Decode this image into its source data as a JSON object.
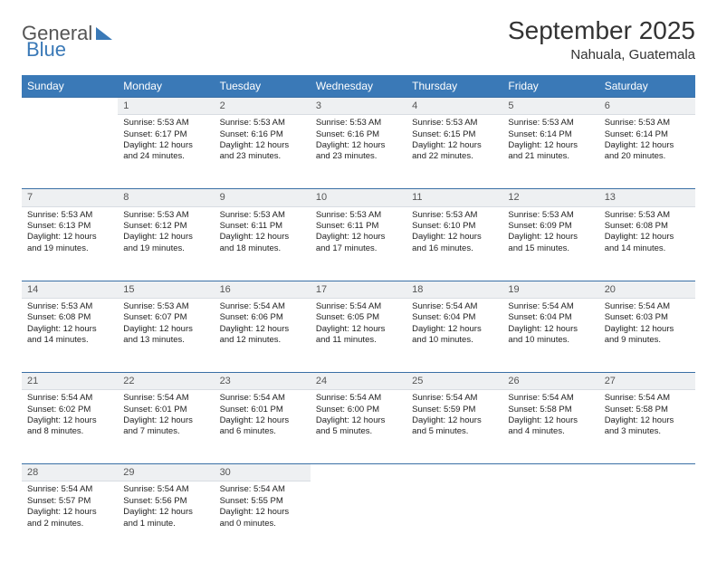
{
  "brand": {
    "part1": "General",
    "part2": "Blue"
  },
  "title": "September 2025",
  "location": "Nahuala, Guatemala",
  "colors": {
    "header_bg": "#3a79b7",
    "header_text": "#ffffff",
    "daynum_bg": "#eef0f2",
    "row_border": "#3a6fa5",
    "page_bg": "#ffffff",
    "body_text": "#222222",
    "title_text": "#333333"
  },
  "day_headers": [
    "Sunday",
    "Monday",
    "Tuesday",
    "Wednesday",
    "Thursday",
    "Friday",
    "Saturday"
  ],
  "weeks": [
    {
      "nums": [
        "",
        "1",
        "2",
        "3",
        "4",
        "5",
        "6"
      ],
      "cells": [
        null,
        {
          "sunrise": "Sunrise: 5:53 AM",
          "sunset": "Sunset: 6:17 PM",
          "daylight": "Daylight: 12 hours and 24 minutes."
        },
        {
          "sunrise": "Sunrise: 5:53 AM",
          "sunset": "Sunset: 6:16 PM",
          "daylight": "Daylight: 12 hours and 23 minutes."
        },
        {
          "sunrise": "Sunrise: 5:53 AM",
          "sunset": "Sunset: 6:16 PM",
          "daylight": "Daylight: 12 hours and 23 minutes."
        },
        {
          "sunrise": "Sunrise: 5:53 AM",
          "sunset": "Sunset: 6:15 PM",
          "daylight": "Daylight: 12 hours and 22 minutes."
        },
        {
          "sunrise": "Sunrise: 5:53 AM",
          "sunset": "Sunset: 6:14 PM",
          "daylight": "Daylight: 12 hours and 21 minutes."
        },
        {
          "sunrise": "Sunrise: 5:53 AM",
          "sunset": "Sunset: 6:14 PM",
          "daylight": "Daylight: 12 hours and 20 minutes."
        }
      ]
    },
    {
      "nums": [
        "7",
        "8",
        "9",
        "10",
        "11",
        "12",
        "13"
      ],
      "cells": [
        {
          "sunrise": "Sunrise: 5:53 AM",
          "sunset": "Sunset: 6:13 PM",
          "daylight": "Daylight: 12 hours and 19 minutes."
        },
        {
          "sunrise": "Sunrise: 5:53 AM",
          "sunset": "Sunset: 6:12 PM",
          "daylight": "Daylight: 12 hours and 19 minutes."
        },
        {
          "sunrise": "Sunrise: 5:53 AM",
          "sunset": "Sunset: 6:11 PM",
          "daylight": "Daylight: 12 hours and 18 minutes."
        },
        {
          "sunrise": "Sunrise: 5:53 AM",
          "sunset": "Sunset: 6:11 PM",
          "daylight": "Daylight: 12 hours and 17 minutes."
        },
        {
          "sunrise": "Sunrise: 5:53 AM",
          "sunset": "Sunset: 6:10 PM",
          "daylight": "Daylight: 12 hours and 16 minutes."
        },
        {
          "sunrise": "Sunrise: 5:53 AM",
          "sunset": "Sunset: 6:09 PM",
          "daylight": "Daylight: 12 hours and 15 minutes."
        },
        {
          "sunrise": "Sunrise: 5:53 AM",
          "sunset": "Sunset: 6:08 PM",
          "daylight": "Daylight: 12 hours and 14 minutes."
        }
      ]
    },
    {
      "nums": [
        "14",
        "15",
        "16",
        "17",
        "18",
        "19",
        "20"
      ],
      "cells": [
        {
          "sunrise": "Sunrise: 5:53 AM",
          "sunset": "Sunset: 6:08 PM",
          "daylight": "Daylight: 12 hours and 14 minutes."
        },
        {
          "sunrise": "Sunrise: 5:53 AM",
          "sunset": "Sunset: 6:07 PM",
          "daylight": "Daylight: 12 hours and 13 minutes."
        },
        {
          "sunrise": "Sunrise: 5:54 AM",
          "sunset": "Sunset: 6:06 PM",
          "daylight": "Daylight: 12 hours and 12 minutes."
        },
        {
          "sunrise": "Sunrise: 5:54 AM",
          "sunset": "Sunset: 6:05 PM",
          "daylight": "Daylight: 12 hours and 11 minutes."
        },
        {
          "sunrise": "Sunrise: 5:54 AM",
          "sunset": "Sunset: 6:04 PM",
          "daylight": "Daylight: 12 hours and 10 minutes."
        },
        {
          "sunrise": "Sunrise: 5:54 AM",
          "sunset": "Sunset: 6:04 PM",
          "daylight": "Daylight: 12 hours and 10 minutes."
        },
        {
          "sunrise": "Sunrise: 5:54 AM",
          "sunset": "Sunset: 6:03 PM",
          "daylight": "Daylight: 12 hours and 9 minutes."
        }
      ]
    },
    {
      "nums": [
        "21",
        "22",
        "23",
        "24",
        "25",
        "26",
        "27"
      ],
      "cells": [
        {
          "sunrise": "Sunrise: 5:54 AM",
          "sunset": "Sunset: 6:02 PM",
          "daylight": "Daylight: 12 hours and 8 minutes."
        },
        {
          "sunrise": "Sunrise: 5:54 AM",
          "sunset": "Sunset: 6:01 PM",
          "daylight": "Daylight: 12 hours and 7 minutes."
        },
        {
          "sunrise": "Sunrise: 5:54 AM",
          "sunset": "Sunset: 6:01 PM",
          "daylight": "Daylight: 12 hours and 6 minutes."
        },
        {
          "sunrise": "Sunrise: 5:54 AM",
          "sunset": "Sunset: 6:00 PM",
          "daylight": "Daylight: 12 hours and 5 minutes."
        },
        {
          "sunrise": "Sunrise: 5:54 AM",
          "sunset": "Sunset: 5:59 PM",
          "daylight": "Daylight: 12 hours and 5 minutes."
        },
        {
          "sunrise": "Sunrise: 5:54 AM",
          "sunset": "Sunset: 5:58 PM",
          "daylight": "Daylight: 12 hours and 4 minutes."
        },
        {
          "sunrise": "Sunrise: 5:54 AM",
          "sunset": "Sunset: 5:58 PM",
          "daylight": "Daylight: 12 hours and 3 minutes."
        }
      ]
    },
    {
      "nums": [
        "28",
        "29",
        "30",
        "",
        "",
        "",
        ""
      ],
      "cells": [
        {
          "sunrise": "Sunrise: 5:54 AM",
          "sunset": "Sunset: 5:57 PM",
          "daylight": "Daylight: 12 hours and 2 minutes."
        },
        {
          "sunrise": "Sunrise: 5:54 AM",
          "sunset": "Sunset: 5:56 PM",
          "daylight": "Daylight: 12 hours and 1 minute."
        },
        {
          "sunrise": "Sunrise: 5:54 AM",
          "sunset": "Sunset: 5:55 PM",
          "daylight": "Daylight: 12 hours and 0 minutes."
        },
        null,
        null,
        null,
        null
      ]
    }
  ]
}
